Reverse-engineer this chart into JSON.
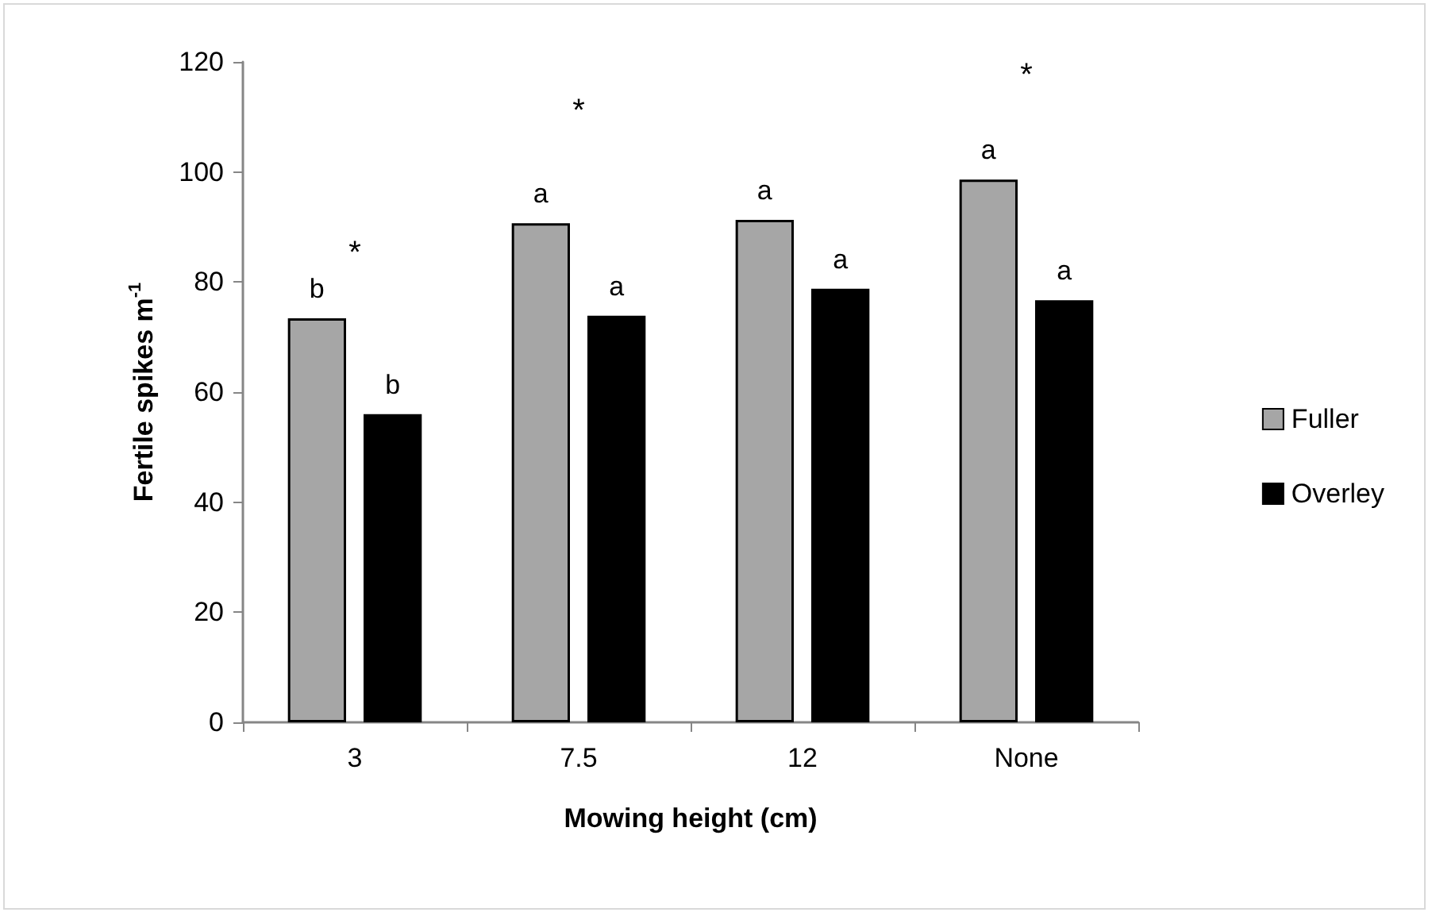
{
  "chart_data": {
    "type": "bar",
    "xlabel": "Mowing height (cm)",
    "ylabel": "Fertile spikes m$^{-1}$",
    "categories": [
      "3",
      "7.5",
      "12",
      "None"
    ],
    "series": [
      {
        "name": "Fuller",
        "color": "#a6a6a6",
        "values": [
          73.4,
          90.7,
          91.3,
          98.6
        ],
        "value_labels": [
          "b",
          "a",
          "a",
          "a"
        ]
      },
      {
        "name": "Overley",
        "color": "#000000",
        "values": [
          56,
          73.9,
          78.8,
          76.7
        ],
        "value_labels": [
          "b",
          "a",
          "a",
          "a"
        ]
      }
    ],
    "annotations": [
      "*",
      "*",
      "*"
    ],
    "ylim": [
      0,
      120
    ],
    "yticks": [
      0,
      20,
      40,
      60,
      80,
      100,
      120
    ],
    "grid": false,
    "legend": "right"
  }
}
